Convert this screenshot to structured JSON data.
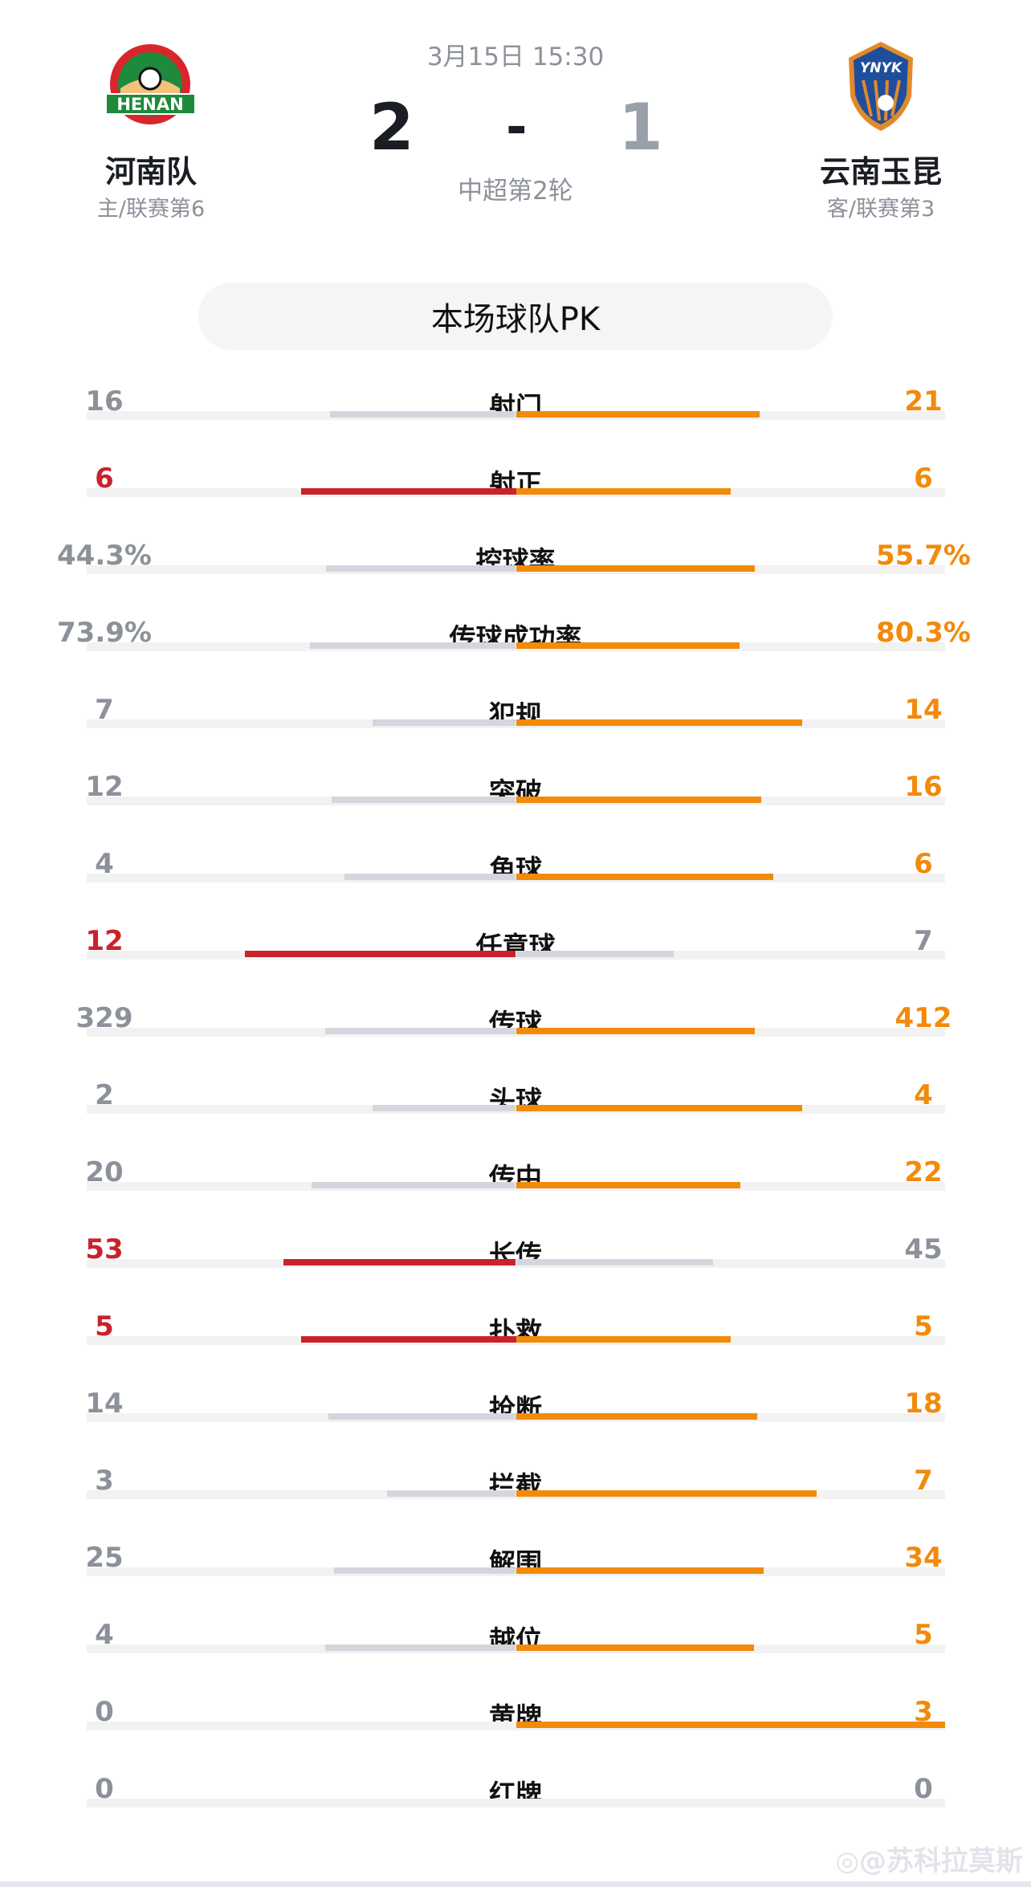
{
  "match": {
    "datetime": "3月15日 15:30",
    "home_score": "2",
    "separator": "-",
    "away_score": "1",
    "round": "中超第2轮"
  },
  "home": {
    "name": "河南队",
    "sub": "主/联赛第6",
    "logo_text": "HENAN",
    "logo_color": "#1e8a3c"
  },
  "away": {
    "name": "云南玉昆",
    "sub": "客/联赛第3",
    "logo_text": "YNYK",
    "logo_color": "#1f4f9c"
  },
  "pk_title": "本场球队PK",
  "colors": {
    "home_lead": "#c9222c",
    "away_lead": "#f28a0a",
    "neutral_text": "#8c919a",
    "neutral_bar": "#d3d7dd"
  },
  "stats": [
    {
      "label": "射门",
      "home": "16",
      "away": "21"
    },
    {
      "label": "射正",
      "home": "6",
      "away": "6"
    },
    {
      "label": "控球率",
      "home": "44.3%",
      "away": "55.7%"
    },
    {
      "label": "传球成功率",
      "home": "73.9%",
      "away": "80.3%"
    },
    {
      "label": "犯规",
      "home": "7",
      "away": "14"
    },
    {
      "label": "突破",
      "home": "12",
      "away": "16"
    },
    {
      "label": "角球",
      "home": "4",
      "away": "6"
    },
    {
      "label": "任意球",
      "home": "12",
      "away": "7"
    },
    {
      "label": "传球",
      "home": "329",
      "away": "412"
    },
    {
      "label": "头球",
      "home": "2",
      "away": "4"
    },
    {
      "label": "传中",
      "home": "20",
      "away": "22"
    },
    {
      "label": "长传",
      "home": "53",
      "away": "45"
    },
    {
      "label": "扑救",
      "home": "5",
      "away": "5"
    },
    {
      "label": "抢断",
      "home": "14",
      "away": "18"
    },
    {
      "label": "拦截",
      "home": "3",
      "away": "7"
    },
    {
      "label": "解围",
      "home": "25",
      "away": "34"
    },
    {
      "label": "越位",
      "home": "4",
      "away": "5"
    },
    {
      "label": "黄牌",
      "home": "0",
      "away": "3"
    },
    {
      "label": "红牌",
      "home": "0",
      "away": "0"
    }
  ],
  "watermark": "@苏科拉莫斯"
}
